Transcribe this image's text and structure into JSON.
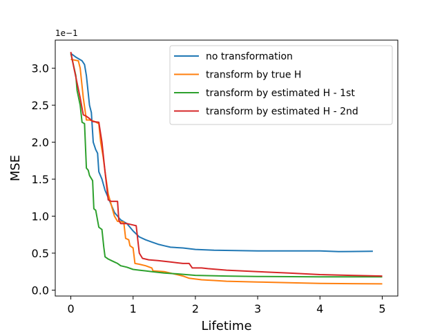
{
  "chart_data": {
    "type": "line",
    "xlabel": "Lifetime",
    "ylabel": "MSE",
    "y_scale_offset": "1e−1",
    "xlim": [
      -0.25,
      5.25
    ],
    "ylim": [
      -0.08,
      3.38
    ],
    "x_ticks": [
      0,
      1,
      2,
      3,
      4,
      5
    ],
    "x_tick_labels": [
      "0",
      "1",
      "2",
      "3",
      "4",
      "5"
    ],
    "y_ticks": [
      0.0,
      0.5,
      1.0,
      1.5,
      2.0,
      2.5,
      3.0
    ],
    "y_tick_labels": [
      "0.0",
      "0.5",
      "1.0",
      "1.5",
      "2.0",
      "2.5",
      "3.0"
    ],
    "grid": false,
    "legend_position": "top-right",
    "series": [
      {
        "name": "no transformation",
        "color": "#1f77b4",
        "points": [
          [
            0,
            3.2
          ],
          [
            0.08,
            3.15
          ],
          [
            0.18,
            3.1
          ],
          [
            0.22,
            3.05
          ],
          [
            0.25,
            2.9
          ],
          [
            0.3,
            2.5
          ],
          [
            0.33,
            2.4
          ],
          [
            0.36,
            2.0
          ],
          [
            0.4,
            1.9
          ],
          [
            0.43,
            1.85
          ],
          [
            0.45,
            1.6
          ],
          [
            0.5,
            1.5
          ],
          [
            0.55,
            1.35
          ],
          [
            0.6,
            1.25
          ],
          [
            0.65,
            1.15
          ],
          [
            0.7,
            1.05
          ],
          [
            0.75,
            1.0
          ],
          [
            0.8,
            0.95
          ],
          [
            0.9,
            0.9
          ],
          [
            1.0,
            0.8
          ],
          [
            1.1,
            0.72
          ],
          [
            1.2,
            0.68
          ],
          [
            1.3,
            0.65
          ],
          [
            1.4,
            0.62
          ],
          [
            1.5,
            0.6
          ],
          [
            1.6,
            0.58
          ],
          [
            1.8,
            0.57
          ],
          [
            2.0,
            0.55
          ],
          [
            2.3,
            0.54
          ],
          [
            3.0,
            0.53
          ],
          [
            4.0,
            0.53
          ],
          [
            4.3,
            0.52
          ],
          [
            4.85,
            0.525
          ]
        ]
      },
      {
        "name": "transform by true H",
        "color": "#ff7f0e",
        "points": [
          [
            0,
            3.12
          ],
          [
            0.12,
            3.1
          ],
          [
            0.15,
            3.0
          ],
          [
            0.2,
            2.6
          ],
          [
            0.25,
            2.3
          ],
          [
            0.3,
            2.3
          ],
          [
            0.38,
            2.28
          ],
          [
            0.45,
            2.25
          ],
          [
            0.48,
            2.0
          ],
          [
            0.52,
            1.8
          ],
          [
            0.55,
            1.6
          ],
          [
            0.6,
            1.3
          ],
          [
            0.65,
            1.15
          ],
          [
            0.7,
            1.0
          ],
          [
            0.75,
            0.93
          ],
          [
            0.85,
            0.92
          ],
          [
            0.88,
            0.7
          ],
          [
            0.93,
            0.68
          ],
          [
            0.95,
            0.6
          ],
          [
            1.0,
            0.57
          ],
          [
            1.03,
            0.36
          ],
          [
            1.1,
            0.35
          ],
          [
            1.2,
            0.33
          ],
          [
            1.3,
            0.3
          ],
          [
            1.32,
            0.26
          ],
          [
            1.5,
            0.25
          ],
          [
            1.6,
            0.23
          ],
          [
            1.8,
            0.19
          ],
          [
            1.9,
            0.16
          ],
          [
            2.1,
            0.14
          ],
          [
            2.3,
            0.13
          ],
          [
            2.5,
            0.12
          ],
          [
            3.0,
            0.11
          ],
          [
            3.5,
            0.1
          ],
          [
            4.0,
            0.09
          ],
          [
            5.0,
            0.085
          ]
        ]
      },
      {
        "name": "transform by estimated H - 1st",
        "color": "#2ca02c",
        "points": [
          [
            0,
            3.2
          ],
          [
            0.08,
            2.9
          ],
          [
            0.1,
            2.7
          ],
          [
            0.15,
            2.5
          ],
          [
            0.18,
            2.27
          ],
          [
            0.22,
            2.25
          ],
          [
            0.25,
            1.65
          ],
          [
            0.28,
            1.62
          ],
          [
            0.3,
            1.55
          ],
          [
            0.35,
            1.48
          ],
          [
            0.37,
            1.1
          ],
          [
            0.4,
            1.08
          ],
          [
            0.45,
            0.85
          ],
          [
            0.5,
            0.82
          ],
          [
            0.53,
            0.58
          ],
          [
            0.55,
            0.45
          ],
          [
            0.6,
            0.42
          ],
          [
            0.65,
            0.4
          ],
          [
            0.7,
            0.38
          ],
          [
            0.75,
            0.36
          ],
          [
            0.8,
            0.33
          ],
          [
            0.9,
            0.31
          ],
          [
            1.0,
            0.28
          ],
          [
            1.1,
            0.27
          ],
          [
            1.2,
            0.26
          ],
          [
            1.3,
            0.25
          ],
          [
            1.5,
            0.23
          ],
          [
            1.7,
            0.22
          ],
          [
            2.0,
            0.2
          ],
          [
            2.5,
            0.19
          ],
          [
            3.0,
            0.185
          ],
          [
            4.0,
            0.18
          ],
          [
            5.0,
            0.18
          ]
        ]
      },
      {
        "name": "transform by estimated H - 2nd",
        "color": "#d62728",
        "points": [
          [
            0,
            3.22
          ],
          [
            0.05,
            3.0
          ],
          [
            0.1,
            2.8
          ],
          [
            0.15,
            2.6
          ],
          [
            0.2,
            2.37
          ],
          [
            0.25,
            2.35
          ],
          [
            0.3,
            2.32
          ],
          [
            0.35,
            2.28
          ],
          [
            0.45,
            2.27
          ],
          [
            0.5,
            2.0
          ],
          [
            0.55,
            1.6
          ],
          [
            0.6,
            1.22
          ],
          [
            0.65,
            1.2
          ],
          [
            0.75,
            1.2
          ],
          [
            0.77,
            0.95
          ],
          [
            0.8,
            0.9
          ],
          [
            0.9,
            0.9
          ],
          [
            1.0,
            0.88
          ],
          [
            1.05,
            0.87
          ],
          [
            1.1,
            0.5
          ],
          [
            1.15,
            0.43
          ],
          [
            1.25,
            0.41
          ],
          [
            1.4,
            0.4
          ],
          [
            1.5,
            0.39
          ],
          [
            1.6,
            0.38
          ],
          [
            1.7,
            0.37
          ],
          [
            1.8,
            0.36
          ],
          [
            1.9,
            0.36
          ],
          [
            1.95,
            0.3
          ],
          [
            2.1,
            0.3
          ],
          [
            2.2,
            0.29
          ],
          [
            2.5,
            0.27
          ],
          [
            3.0,
            0.25
          ],
          [
            3.5,
            0.23
          ],
          [
            4.0,
            0.21
          ],
          [
            4.5,
            0.2
          ],
          [
            5.0,
            0.19
          ]
        ]
      }
    ]
  }
}
